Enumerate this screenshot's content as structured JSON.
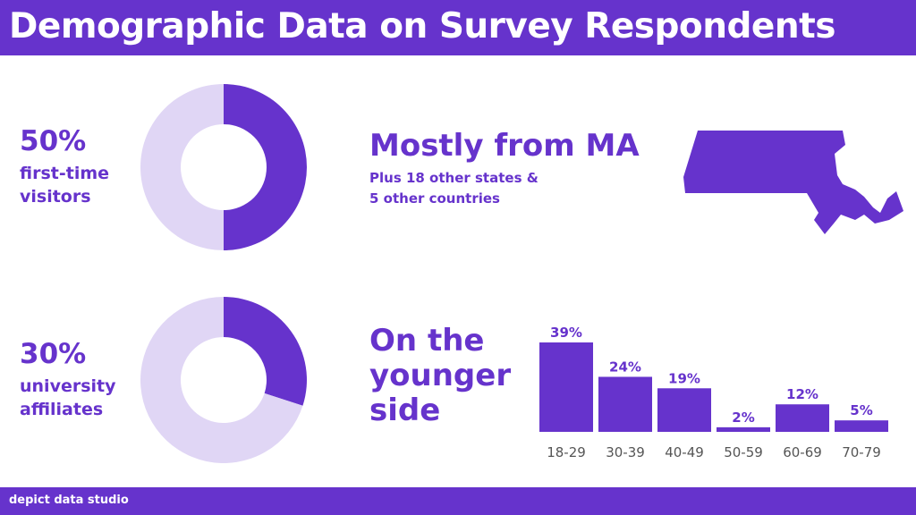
{
  "header": {
    "title": "Demographic Data on Survey Respondents"
  },
  "footer": {
    "brand": "depict data studio"
  },
  "colors": {
    "primary": "#6633cc",
    "light": "#e0d6f5",
    "bar": "#6633cc"
  },
  "stats": [
    {
      "value": "50%",
      "label_line1": "first-time",
      "label_line2": "visitors"
    },
    {
      "value": "30%",
      "label_line1": "university",
      "label_line2": "affiliates"
    }
  ],
  "geo": {
    "headline": "Mostly from MA",
    "sub_line1": "Plus 18 other states &",
    "sub_line2": "5 other countries",
    "map_icon": "massachusetts-map-icon"
  },
  "age": {
    "headline_line1": "On the",
    "headline_line2": "younger",
    "headline_line3": "side"
  },
  "chart_data": [
    {
      "type": "pie",
      "title": "",
      "labels": [
        "first-time visitors",
        "other"
      ],
      "values": [
        50,
        50
      ]
    },
    {
      "type": "pie",
      "title": "",
      "labels": [
        "university affiliates",
        "other"
      ],
      "values": [
        30,
        70
      ]
    },
    {
      "type": "bar",
      "title": "",
      "categories": [
        "18-29",
        "30-39",
        "40-49",
        "50-59",
        "60-69",
        "70-79"
      ],
      "values": [
        39,
        24,
        19,
        2,
        12,
        5
      ],
      "data_labels": [
        "39%",
        "24%",
        "19%",
        "2%",
        "12%",
        "5%"
      ],
      "xlabel": "",
      "ylabel": "",
      "ylim": [
        0,
        39
      ],
      "grid": false
    }
  ]
}
